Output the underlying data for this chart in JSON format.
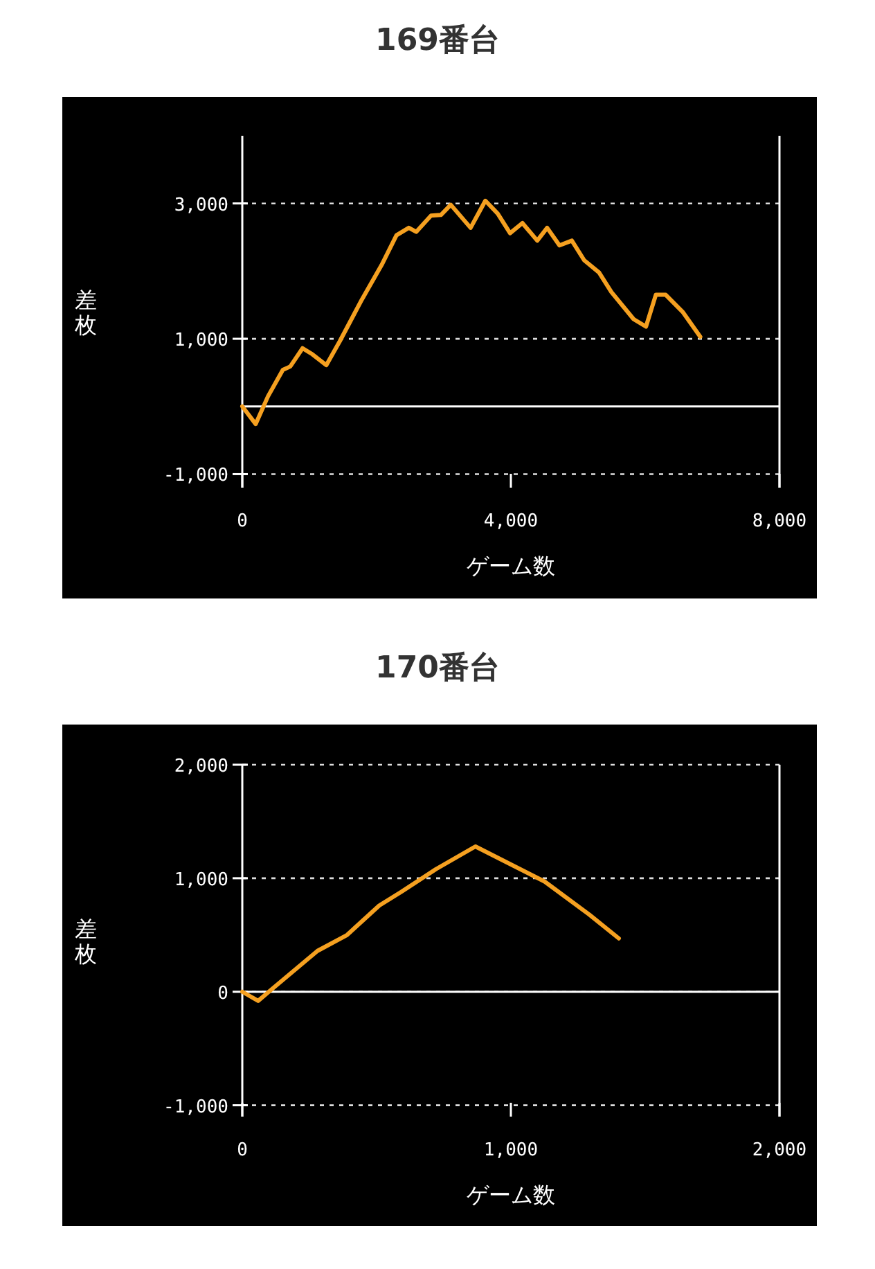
{
  "chart_data": [
    {
      "type": "line",
      "title": "169番台",
      "xlabel": "ゲーム数",
      "ylabel": "差枚",
      "xlim": [
        0,
        8000
      ],
      "ylim": [
        -1200,
        4000
      ],
      "xticks": [
        0,
        {
          "value": 4000,
          "label": "4,000"
        },
        {
          "value": 8000,
          "label": "8,000"
        }
      ],
      "yticks": [
        {
          "value": -1000,
          "label": "-1,000"
        },
        {
          "value": 1000,
          "label": "1,000"
        },
        {
          "value": 3000,
          "label": "3,000"
        }
      ],
      "grid": "y",
      "ref_lines": [
        {
          "axis": "y",
          "value": 0,
          "color": "#ffffff"
        }
      ],
      "series": [
        {
          "color": "#f5a020",
          "x": [
            0,
            199,
            383,
            604,
            714,
            898,
            1045,
            1251,
            1450,
            1781,
            2075,
            2296,
            2480,
            2590,
            2811,
            2958,
            3105,
            3400,
            3620,
            3804,
            3988,
            4172,
            4393,
            4540,
            4724,
            4908,
            5092,
            5313,
            5497,
            5828,
            6012,
            6159,
            6306,
            6564,
            6821
          ],
          "values": [
            0,
            -260,
            150,
            540,
            590,
            860,
            770,
            610,
            960,
            1580,
            2090,
            2530,
            2640,
            2580,
            2820,
            2830,
            2980,
            2640,
            3040,
            2850,
            2560,
            2710,
            2450,
            2640,
            2380,
            2450,
            2160,
            1980,
            1690,
            1290,
            1180,
            1650,
            1650,
            1390,
            1030
          ]
        }
      ]
    },
    {
      "type": "line",
      "title": "170番台",
      "xlabel": "ゲーム数",
      "ylabel": "差枚",
      "xlim": [
        0,
        2000
      ],
      "ylim": [
        -1100,
        2000
      ],
      "xticks": [
        0,
        {
          "value": 1000,
          "label": "1,000"
        },
        {
          "value": 2000,
          "label": "2,000"
        }
      ],
      "yticks": [
        {
          "value": -1000,
          "label": "-1,000"
        },
        0,
        {
          "value": 1000,
          "label": "1,000"
        },
        {
          "value": 2000,
          "label": "2,000"
        }
      ],
      "grid": "y",
      "ref_lines": [
        {
          "axis": "y",
          "value": 0,
          "color": "#ffffff"
        }
      ],
      "series": [
        {
          "color": "#f5a020",
          "x": [
            0,
            59,
            114,
            280,
            390,
            510,
            592,
            721,
            868,
            1126,
            1292,
            1402
          ],
          "values": [
            0,
            -80,
            30,
            360,
            500,
            760,
            880,
            1080,
            1280,
            970,
            680,
            470
          ]
        }
      ]
    }
  ]
}
